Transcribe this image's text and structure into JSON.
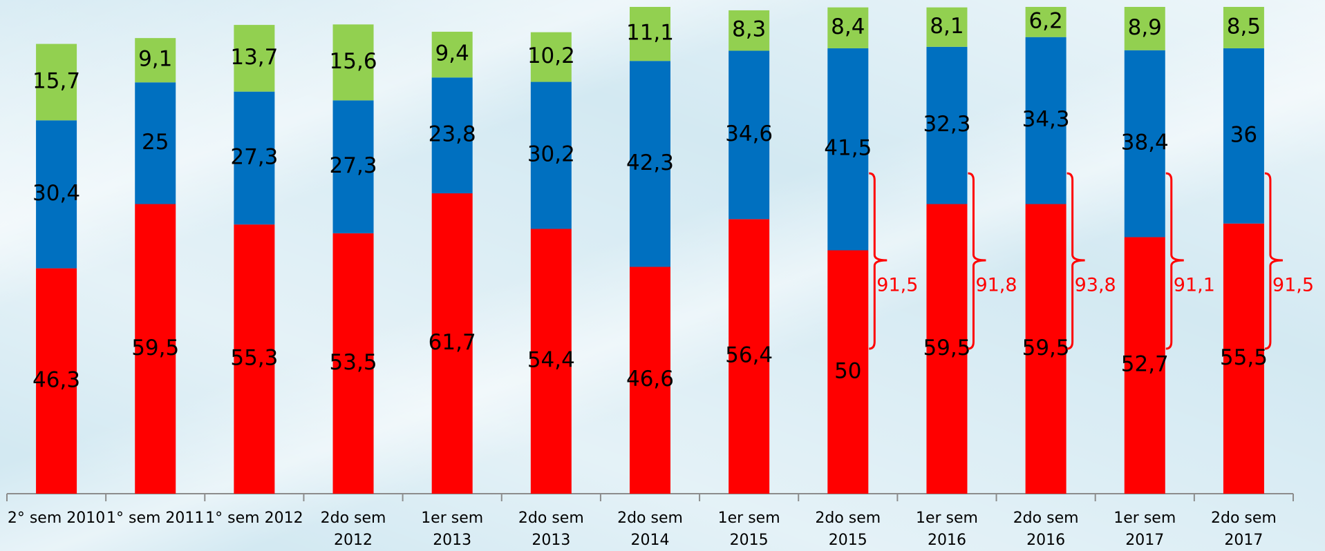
{
  "chart_data": {
    "type": "stacked_bar",
    "categories": [
      "2° sem 2010",
      "1° sem 2011",
      "1° sem 2012",
      "2do sem\n2012",
      "1er sem\n2013",
      "2do sem\n2013",
      "2do sem\n2014",
      "1er sem\n2015",
      "2do sem\n2015",
      "1er sem\n2016",
      "2do sem\n2016",
      "1er sem\n2017",
      "2do sem\n2017"
    ],
    "series": [
      {
        "color": "#ff0000",
        "values": [
          46.3,
          59.5,
          55.3,
          53.5,
          61.7,
          54.4,
          46.6,
          56.4,
          50,
          59.5,
          59.5,
          52.7,
          55.5
        ],
        "value_labels": [
          "46,3",
          "59,5",
          "55,3",
          "53,5",
          "61,7",
          "54,4",
          "46,6",
          "56,4",
          "50",
          "59,5",
          "59,5",
          "52,7",
          "55,5"
        ]
      },
      {
        "color": "#0070c0",
        "values": [
          30.4,
          25,
          27.3,
          27.3,
          23.8,
          30.2,
          42.3,
          34.6,
          41.5,
          32.3,
          34.3,
          38.4,
          36
        ],
        "value_labels": [
          "30,4",
          "25",
          "27,3",
          "27,3",
          "23,8",
          "30,2",
          "42,3",
          "34,6",
          "41,5",
          "32,3",
          "34,3",
          "38,4",
          "36"
        ]
      },
      {
        "color": "#92d050",
        "values": [
          15.7,
          9.1,
          13.7,
          15.6,
          9.4,
          10.2,
          11.1,
          8.3,
          8.4,
          8.1,
          6.2,
          8.9,
          8.5
        ],
        "value_labels": [
          "15,7",
          "9,1",
          "13,7",
          "15,6",
          "9,4",
          "10,2",
          "11,1",
          "8,3",
          "8,4",
          "8,1",
          "6,2",
          "8,9",
          "8,5"
        ]
      }
    ],
    "bracket_labels": [
      null,
      null,
      null,
      null,
      null,
      null,
      null,
      null,
      "91,5",
      "91,8",
      "93,8",
      "91,1",
      "91,5"
    ],
    "bracket_color": "#ff0000",
    "ylim": [
      0,
      100
    ]
  }
}
